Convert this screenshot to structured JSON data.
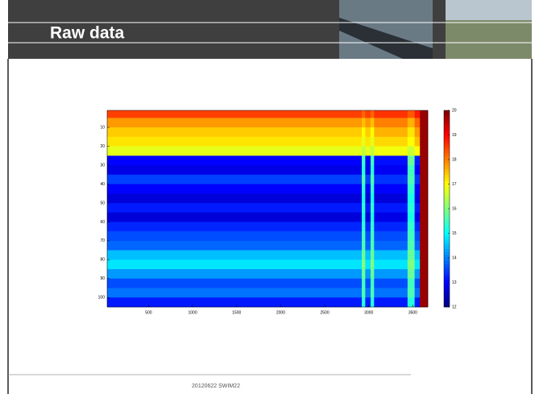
{
  "header": {
    "title": "Raw data"
  },
  "footer": {
    "text": "20120622 SWIM22"
  },
  "chart_data": {
    "type": "heatmap",
    "colormap": "jet",
    "x_edges": [
      30,
      2920,
      2960,
      3020,
      3060,
      3440,
      3520,
      3580,
      3670
    ],
    "y_edges": [
      1,
      5,
      10,
      15,
      20,
      25,
      30,
      35,
      40,
      45,
      50,
      55,
      60,
      65,
      70,
      75,
      80,
      85,
      90,
      95,
      100,
      105
    ],
    "z": [
      [
        18.5,
        18.2,
        18.5,
        18.2,
        18.6,
        18.3,
        18.8,
        19.8
      ],
      [
        17.8,
        17.5,
        17.8,
        17.5,
        18,
        17.6,
        18.2,
        19.8
      ],
      [
        17.4,
        17,
        17.4,
        17,
        17.6,
        17.2,
        17.8,
        19.8
      ],
      [
        17.2,
        16.8,
        17.2,
        16.8,
        17.3,
        17,
        17.5,
        19.8
      ],
      [
        16.8,
        16.5,
        16.8,
        16.5,
        16.9,
        16.6,
        17,
        19.8
      ],
      [
        13,
        15.5,
        13,
        15.5,
        13.1,
        15.8,
        13.2,
        19.8
      ],
      [
        12.8,
        15.3,
        12.8,
        15.3,
        12.9,
        15.5,
        13,
        19.8
      ],
      [
        13.5,
        15.6,
        13.5,
        15.6,
        13.4,
        15.6,
        13.4,
        19.8
      ],
      [
        13,
        15.4,
        13,
        15.4,
        13,
        15.4,
        13,
        19.8
      ],
      [
        12.7,
        15.2,
        12.7,
        15.2,
        12.7,
        15.2,
        12.8,
        19.8
      ],
      [
        13.2,
        15.4,
        13.2,
        15.4,
        13.2,
        15.3,
        13.2,
        19.8
      ],
      [
        12.7,
        15.2,
        12.7,
        15.2,
        12.8,
        15.2,
        12.8,
        19.8
      ],
      [
        13.3,
        15.4,
        13.3,
        15.4,
        13.3,
        15.4,
        13.3,
        19.8
      ],
      [
        13.6,
        15.5,
        13.6,
        15.5,
        13.6,
        15.5,
        13.6,
        19.8
      ],
      [
        13.8,
        15.6,
        13.8,
        15.6,
        13.8,
        15.6,
        13.8,
        19.8
      ],
      [
        14.5,
        15.8,
        14.5,
        15.8,
        14.5,
        15.8,
        14.5,
        19.8
      ],
      [
        14.8,
        16,
        14.8,
        16,
        14.8,
        16,
        14.8,
        19.8
      ],
      [
        14.2,
        15.8,
        14.2,
        15.8,
        14.2,
        15.8,
        14.2,
        19.8
      ],
      [
        13.6,
        15.5,
        13.6,
        15.5,
        13.6,
        15.5,
        13.6,
        19.8
      ],
      [
        13.9,
        15.6,
        13.9,
        15.6,
        13.9,
        15.6,
        13.9,
        19.8
      ],
      [
        13.2,
        15.3,
        13.2,
        15.3,
        13.2,
        15.3,
        13.2,
        19.8
      ]
    ],
    "xlim": [
      30,
      3670
    ],
    "xticks": [
      500,
      1000,
      1500,
      2000,
      2500,
      3000,
      3500
    ],
    "ylim": [
      1,
      105
    ],
    "y_reversed": true,
    "yticks": [
      10,
      20,
      30,
      40,
      50,
      60,
      70,
      80,
      90,
      100
    ],
    "clim": [
      12,
      20
    ],
    "cticks": [
      12,
      13,
      14,
      15,
      16,
      17,
      18,
      19,
      20
    ]
  }
}
